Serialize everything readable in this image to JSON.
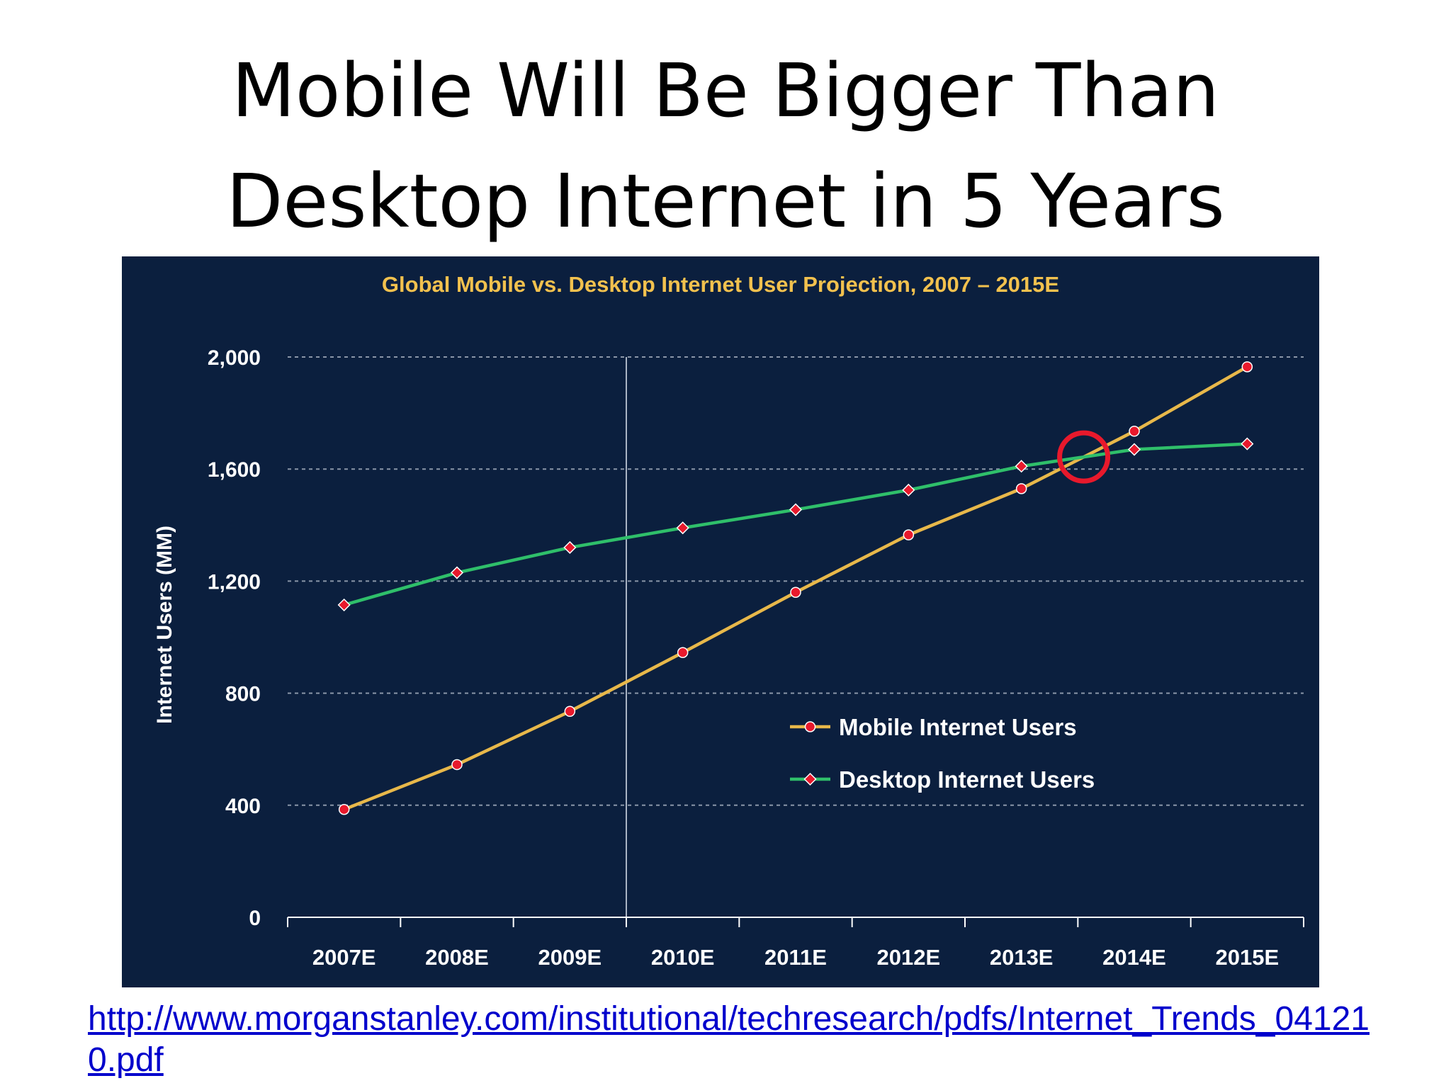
{
  "slide": {
    "title_line1": "Mobile Will Be Bigger Than",
    "title_line2": "Desktop Internet in 5 Years",
    "source_link": "http://www.morganstanley.com/institutional/techresearch/pdfs/Internet_Trends_041210.pdf"
  },
  "colors": {
    "panel_bg": "#0b1f3e",
    "title": "#f2c14e",
    "mobile": "#e8b84a",
    "desktop": "#2fbf6a",
    "marker": "#e8192c",
    "highlight_circle": "#e8192c",
    "axis_text": "#ffffff"
  },
  "chart_data": {
    "type": "line",
    "title": "Global Mobile vs. Desktop Internet User Projection, 2007 – 2015E",
    "xlabel": "",
    "ylabel": "Internet Users (MM)",
    "categories": [
      "2007E",
      "2008E",
      "2009E",
      "2010E",
      "2011E",
      "2012E",
      "2013E",
      "2014E",
      "2015E"
    ],
    "yticks": [
      "0",
      "400",
      "800",
      "1,200",
      "1,600",
      "2,000"
    ],
    "ylim": [
      0,
      2000
    ],
    "grid": true,
    "legend_position": "right",
    "vertical_marker_between": [
      "2009E",
      "2010E"
    ],
    "highlight_crossover_between": [
      "2013E",
      "2014E"
    ],
    "series": [
      {
        "name": "Mobile Internet Users",
        "color": "#e8b84a",
        "values": [
          385,
          545,
          735,
          945,
          1160,
          1365,
          1530,
          1735,
          1965
        ]
      },
      {
        "name": "Desktop Internet Users",
        "color": "#2fbf6a",
        "values": [
          1115,
          1230,
          1320,
          1390,
          1455,
          1525,
          1610,
          1670,
          1690
        ]
      }
    ]
  }
}
